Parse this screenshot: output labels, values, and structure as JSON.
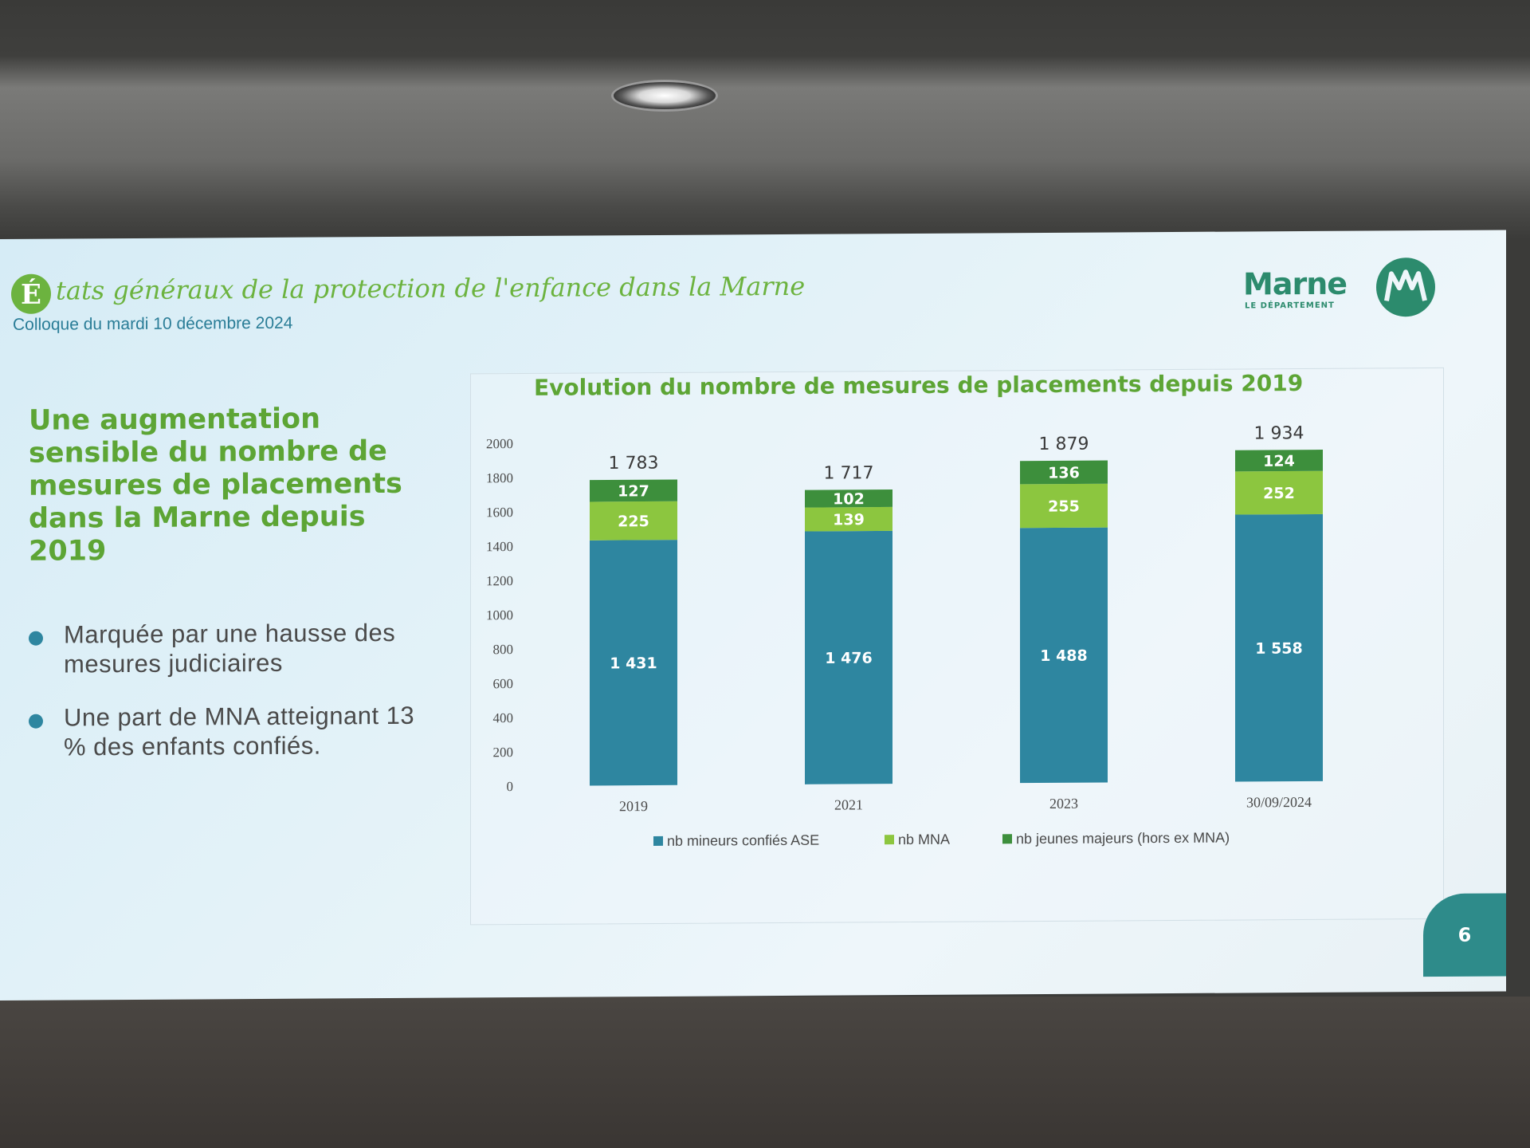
{
  "slide": {
    "title_initial": "É",
    "title_rest": "tats généraux de la protection de l'enfance dans la Marne",
    "subtitle": "Colloque du mardi 10 décembre 2024",
    "logo_name": "Marne",
    "logo_sub": "LE DÉPARTEMENT",
    "heading": "Une augmentation sensible du nombre de mesures de placements dans la Marne depuis 2019",
    "bullets": [
      "Marquée par une hausse des mesures judiciaires",
      "Une part de MNA atteignant 13 % des enfants confiés."
    ],
    "page_number": "6"
  },
  "colors": {
    "ase": "#2e86a0",
    "mna": "#8cc63f",
    "jeunes_majeurs": "#3d8f3c",
    "accent_green": "#6cb33f",
    "subtitle_blue": "#2a7d97"
  },
  "chart_data": {
    "type": "bar",
    "stacked": true,
    "title": "Evolution du nombre de mesures de placements depuis 2019",
    "categories": [
      "2019",
      "2021",
      "2023",
      "30/09/2024"
    ],
    "series": [
      {
        "name": "nb mineurs confiés ASE",
        "values": [
          1431,
          1476,
          1488,
          1558
        ],
        "labels": [
          "1 431",
          "1 476",
          "1 488",
          "1 558"
        ],
        "color": "#2e86a0"
      },
      {
        "name": "nb MNA",
        "values": [
          225,
          139,
          255,
          252
        ],
        "labels": [
          "225",
          "139",
          "255",
          "252"
        ],
        "color": "#8cc63f"
      },
      {
        "name": "nb jeunes majeurs (hors ex MNA)",
        "values": [
          127,
          102,
          136,
          124
        ],
        "labels": [
          "127",
          "102",
          "136",
          "124"
        ],
        "color": "#3d8f3c"
      }
    ],
    "totals": [
      1783,
      1717,
      1879,
      1934
    ],
    "total_labels": [
      "1 783",
      "1 717",
      "1 879",
      "1 934"
    ],
    "ylim": [
      0,
      2000
    ],
    "yticks": [
      "0",
      "200",
      "400",
      "600",
      "800",
      "1000",
      "1200",
      "1400",
      "1600",
      "1800",
      "2000"
    ],
    "legend_position": "bottom",
    "grid": false
  }
}
